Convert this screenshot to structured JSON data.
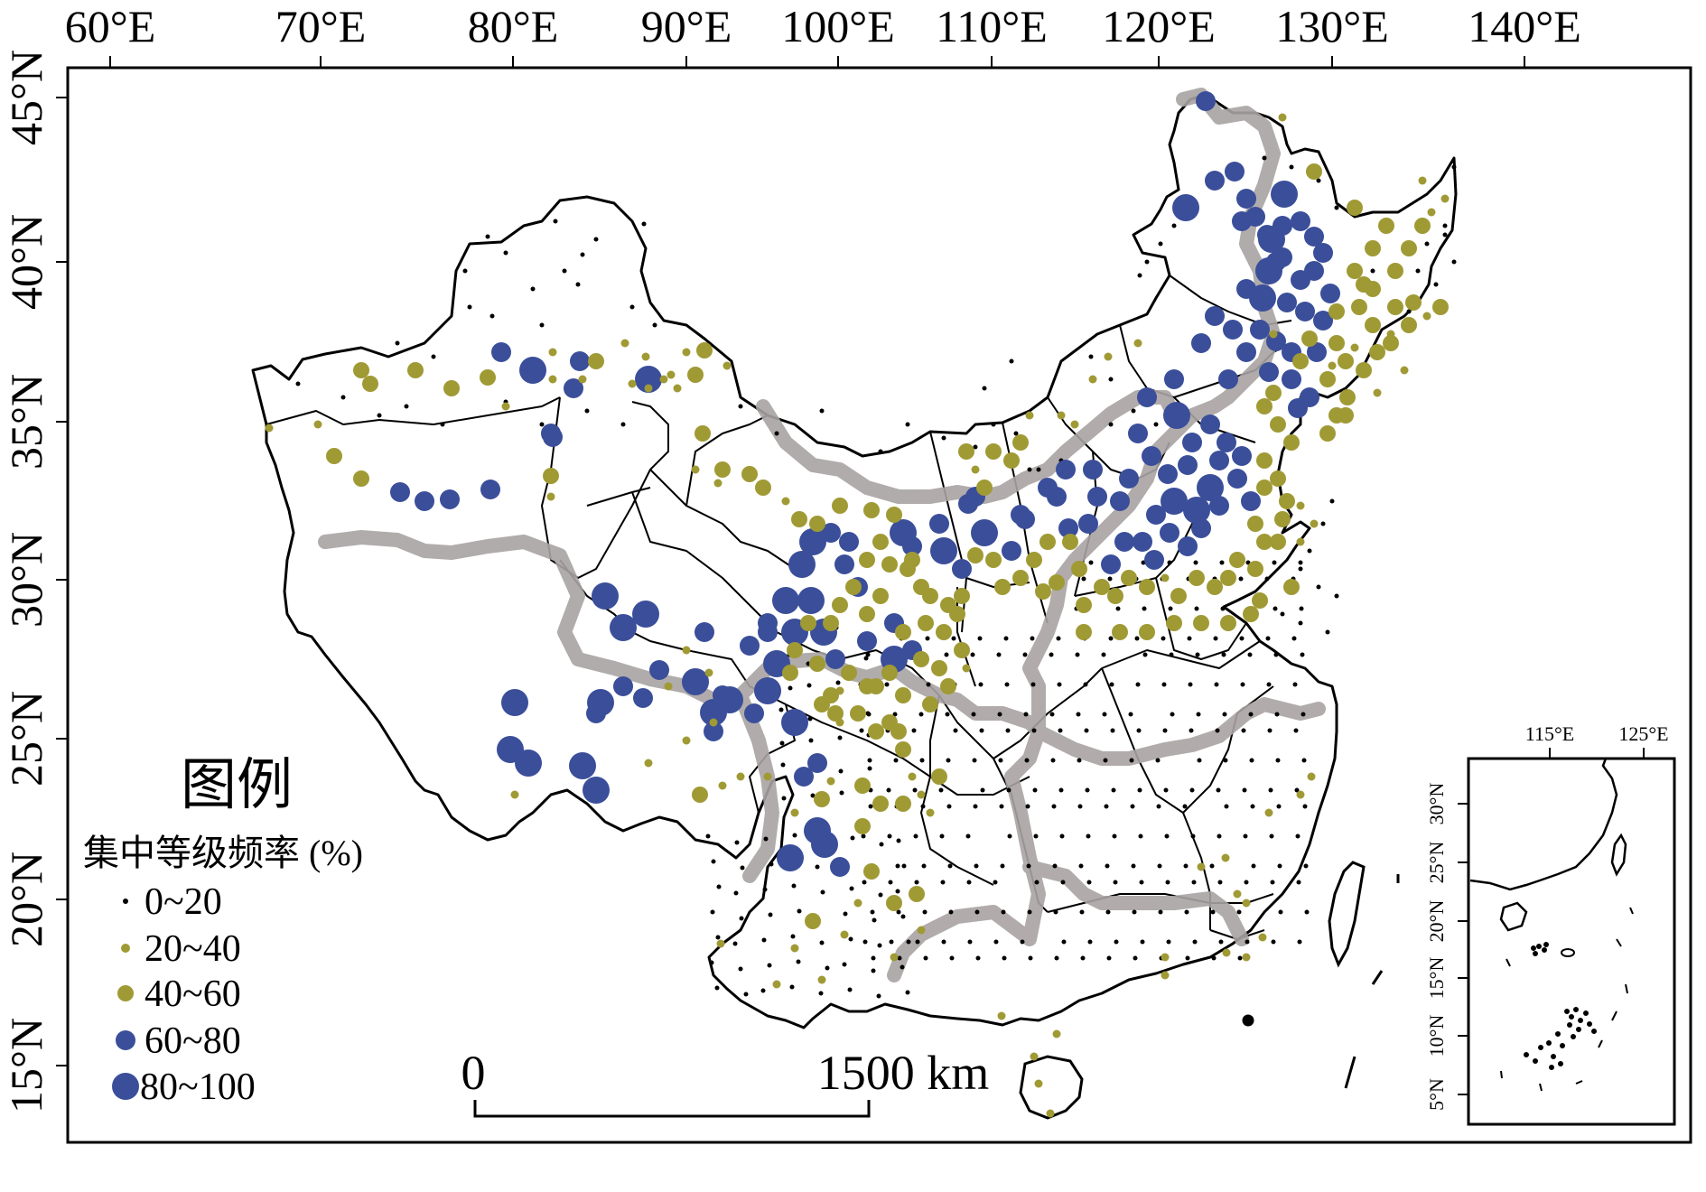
{
  "map": {
    "top_axis_labels": [
      "60°E",
      "70°E",
      "80°E",
      "90°E",
      "100°E",
      "110°E",
      "120°E",
      "130°E",
      "140°E"
    ],
    "left_axis_labels": [
      "45°N",
      "40°N",
      "35°N",
      "30°N",
      "25°N",
      "20°N",
      "15°N"
    ],
    "scale_bar": {
      "start_label": "0",
      "end_label": "1500 km"
    },
    "legend": {
      "title": "图例",
      "subtitle": "集中等级频率 (%)",
      "items": [
        {
          "label": "0~20",
          "color": "#000000"
        },
        {
          "label": "20~40",
          "color": "#a09a35"
        },
        {
          "label": "40~60",
          "color": "#a09a35"
        },
        {
          "label": "60~80",
          "color": "#3a4e9a"
        },
        {
          "label": "80~100",
          "color": "#3a4e9a"
        }
      ]
    },
    "inset": {
      "top_labels": [
        "115°E",
        "125°E"
      ],
      "left_labels": [
        "30°N",
        "25°N",
        "20°N",
        "15°N",
        "10°N",
        "5°N"
      ]
    },
    "colors": {
      "olive": "#a09a35",
      "blue": "#3a4e9a",
      "region_line": "#a9a3a3",
      "outline": "#000000"
    }
  }
}
